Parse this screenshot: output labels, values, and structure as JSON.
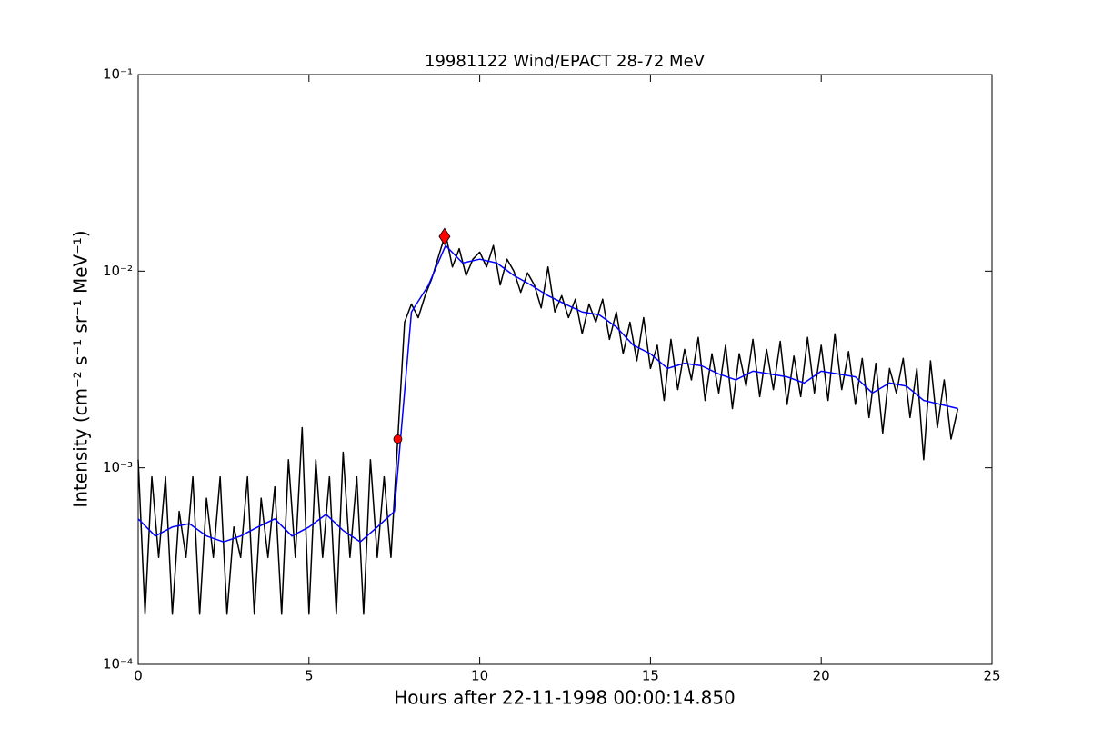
{
  "chart_data": {
    "type": "line",
    "title": "19981122 Wind/EPACT 28-72 MeV",
    "x_label": "Hours after 22-11-1998 00:00:14.850",
    "y_label": "Intensity (cm⁻² s⁻¹ sr⁻¹ MeV⁻¹)",
    "xlim": [
      0,
      25
    ],
    "xticks": [
      0,
      5,
      10,
      15,
      20,
      25
    ],
    "ylim": [
      0.0001,
      0.1
    ],
    "yscale": "log",
    "yticks": [
      {
        "value": 0.0001,
        "label": "10⁻⁴"
      },
      {
        "value": 0.001,
        "label": "10⁻³"
      },
      {
        "value": 0.01,
        "label": "10⁻²"
      },
      {
        "value": 0.1,
        "label": "10⁻¹"
      }
    ],
    "series": [
      {
        "color": "#000000",
        "x": [
          0,
          0.2,
          0.4,
          0.6,
          0.8,
          1,
          1.2,
          1.4,
          1.6,
          1.8,
          2,
          2.2,
          2.4,
          2.6,
          2.8,
          3,
          3.2,
          3.4,
          3.6,
          3.8,
          4,
          4.2,
          4.4,
          4.6,
          4.8,
          5,
          5.2,
          5.4,
          5.6,
          5.8,
          6,
          6.2,
          6.4,
          6.6,
          6.8,
          7,
          7.2,
          7.4,
          7.6,
          7.8,
          8,
          8.2,
          8.4,
          8.6,
          8.8,
          9,
          9.2,
          9.4,
          9.6,
          9.8,
          10,
          10.2,
          10.4,
          10.6,
          10.8,
          11,
          11.2,
          11.4,
          11.6,
          11.8,
          12,
          12.2,
          12.4,
          12.6,
          12.8,
          13,
          13.2,
          13.4,
          13.6,
          13.8,
          14,
          14.2,
          14.4,
          14.6,
          14.8,
          15,
          15.2,
          15.4,
          15.6,
          15.8,
          16,
          16.2,
          16.4,
          16.6,
          16.8,
          17,
          17.2,
          17.4,
          17.6,
          17.8,
          18,
          18.2,
          18.4,
          18.6,
          18.8,
          19,
          19.2,
          19.4,
          19.6,
          19.8,
          20,
          20.2,
          20.4,
          20.6,
          20.8,
          21,
          21.2,
          21.4,
          21.6,
          21.8,
          22,
          22.2,
          22.4,
          22.6,
          22.8,
          23,
          23.2,
          23.4,
          23.6,
          23.8,
          24
        ],
        "values": [
          0.0011,
          0.00018,
          0.0009,
          0.00035,
          0.0009,
          0.00018,
          0.0006,
          0.00035,
          0.0009,
          0.00018,
          0.0007,
          0.00035,
          0.0009,
          0.00018,
          0.0005,
          0.00035,
          0.0009,
          0.00018,
          0.0007,
          0.00035,
          0.0008,
          0.00018,
          0.0011,
          0.00035,
          0.0016,
          0.00018,
          0.0011,
          0.00035,
          0.0009,
          0.00018,
          0.0012,
          0.00035,
          0.0009,
          0.00018,
          0.0011,
          0.00035,
          0.0009,
          0.00035,
          0.0014,
          0.0055,
          0.0068,
          0.0058,
          0.0075,
          0.0092,
          0.012,
          0.0155,
          0.0105,
          0.013,
          0.0095,
          0.0115,
          0.0125,
          0.0105,
          0.0135,
          0.0085,
          0.0115,
          0.01,
          0.0078,
          0.0098,
          0.0085,
          0.0065,
          0.0105,
          0.0062,
          0.0075,
          0.0058,
          0.0072,
          0.0048,
          0.0068,
          0.0055,
          0.0072,
          0.0045,
          0.0062,
          0.0038,
          0.0055,
          0.0035,
          0.0058,
          0.0032,
          0.0042,
          0.0022,
          0.0045,
          0.0025,
          0.004,
          0.0028,
          0.0046,
          0.0022,
          0.0038,
          0.0024,
          0.0042,
          0.002,
          0.0038,
          0.0026,
          0.0045,
          0.0023,
          0.004,
          0.0025,
          0.0044,
          0.0021,
          0.0037,
          0.0023,
          0.0046,
          0.0024,
          0.0042,
          0.0022,
          0.0048,
          0.0025,
          0.0039,
          0.0021,
          0.0036,
          0.0018,
          0.0034,
          0.0015,
          0.0032,
          0.0024,
          0.0036,
          0.0018,
          0.0032,
          0.0011,
          0.0035,
          0.0016,
          0.0028,
          0.0014,
          0.002
        ]
      },
      {
        "color": "#0000ff",
        "x": [
          0,
          0.5,
          1,
          1.5,
          2,
          2.5,
          3,
          3.5,
          4,
          4.5,
          5,
          5.5,
          6,
          6.5,
          7,
          7.5,
          8,
          8.5,
          9,
          9.5,
          10,
          10.5,
          11,
          11.5,
          12,
          12.5,
          13,
          13.5,
          14,
          14.5,
          15,
          15.5,
          16,
          16.5,
          17,
          17.5,
          18,
          18.5,
          19,
          19.5,
          20,
          20.5,
          21,
          21.5,
          22,
          22.5,
          23,
          23.5,
          24
        ],
        "values": [
          0.00055,
          0.00045,
          0.0005,
          0.00052,
          0.00045,
          0.00042,
          0.00045,
          0.0005,
          0.00055,
          0.00045,
          0.0005,
          0.00058,
          0.00048,
          0.00042,
          0.0005,
          0.0006,
          0.0062,
          0.0085,
          0.0135,
          0.011,
          0.0115,
          0.011,
          0.0095,
          0.0085,
          0.0075,
          0.0068,
          0.0062,
          0.006,
          0.0052,
          0.0042,
          0.0038,
          0.0032,
          0.0034,
          0.0033,
          0.003,
          0.0028,
          0.0031,
          0.003,
          0.0029,
          0.0027,
          0.0031,
          0.003,
          0.0029,
          0.0024,
          0.0027,
          0.0026,
          0.0022,
          0.0021,
          0.002
        ]
      }
    ],
    "markers": [
      {
        "x": 7.6,
        "y": 0.0014,
        "shape": "circle",
        "color": "#ff0000"
      },
      {
        "x": 8.97,
        "y": 0.015,
        "shape": "diamond",
        "color": "#ff0000"
      }
    ]
  }
}
